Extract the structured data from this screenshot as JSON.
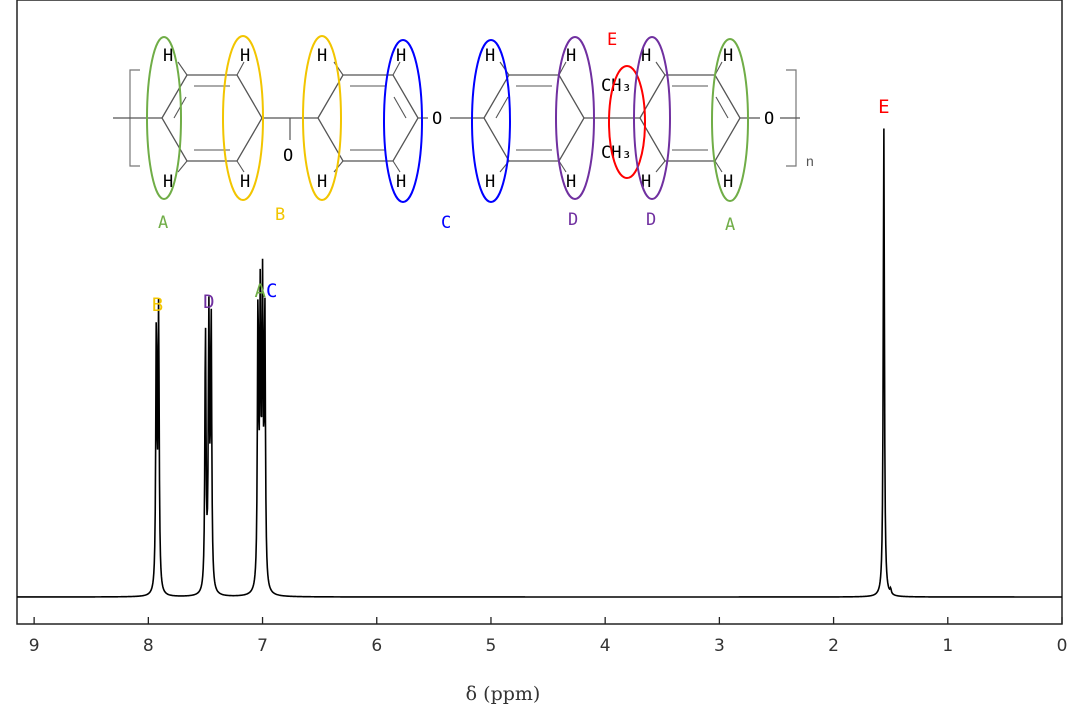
{
  "chart_data": {
    "type": "line",
    "xlabel": "δ (ppm)",
    "xlim": [
      9.15,
      0
    ],
    "x_ticks": [
      "9",
      "8",
      "7",
      "6",
      "5",
      "4",
      "3",
      "2",
      "1",
      "0"
    ],
    "x_tick_values": [
      9,
      8,
      7,
      6,
      5,
      4,
      3,
      2,
      1,
      0
    ],
    "ylim": [
      0,
      1
    ],
    "grid": false,
    "series": [
      {
        "peaks": [
          {
            "x": 7.93,
            "y": 0.57
          },
          {
            "x": 7.91,
            "y": 0.59
          },
          {
            "x": 7.5,
            "y": 0.56
          },
          {
            "x": 7.47,
            "y": 0.57
          },
          {
            "x": 7.45,
            "y": 0.58
          },
          {
            "x": 7.04,
            "y": 0.6
          },
          {
            "x": 7.02,
            "y": 0.59
          },
          {
            "x": 7.0,
            "y": 0.61
          },
          {
            "x": 6.98,
            "y": 0.59
          },
          {
            "x": 1.56,
            "y": 1.0
          },
          {
            "x": 1.5,
            "y": 0.01
          }
        ]
      }
    ],
    "peak_labels": [
      {
        "text": "B",
        "x": 7.92,
        "color": "#f2c500"
      },
      {
        "text": "D",
        "x": 7.47,
        "color": "#7030a0"
      },
      {
        "text": "A",
        "x": 7.02,
        "color": "#70ad47"
      },
      {
        "text": "C",
        "x": 6.92,
        "color": "#0000ff"
      },
      {
        "text": "E",
        "x": 1.56,
        "color": "#ff0000"
      }
    ]
  },
  "structure": {
    "atom_h": "H",
    "atom_o": "O",
    "ch3": "CH₃",
    "subscript_n": "n",
    "groups": {
      "A": {
        "label": "A",
        "color": "#70ad47"
      },
      "B": {
        "label": "B",
        "color": "#f2c500"
      },
      "C": {
        "label": "C",
        "color": "#0000ff"
      },
      "D": {
        "label": "D",
        "color": "#7030a0"
      },
      "E": {
        "label": "E",
        "color": "#ff0000"
      }
    }
  }
}
